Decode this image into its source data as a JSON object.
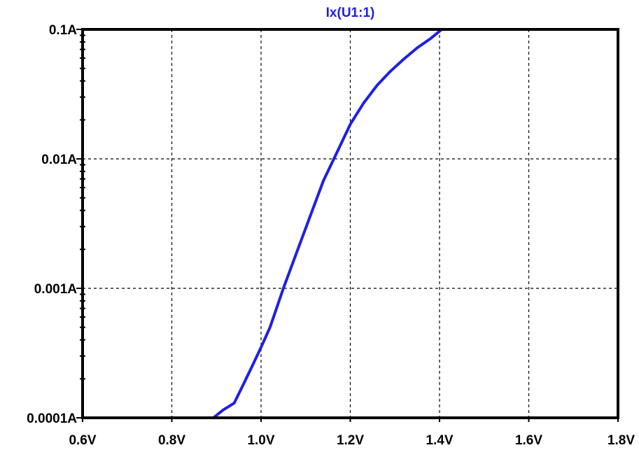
{
  "chart_data": {
    "type": "line",
    "title": "Ix(U1:1)",
    "xlabel": "",
    "ylabel": "",
    "x_scale": "linear",
    "y_scale": "log",
    "xlim": [
      0.6,
      1.8
    ],
    "ylim": [
      0.0001,
      0.1
    ],
    "x_ticks": [
      0.6,
      0.8,
      1.0,
      1.2,
      1.4,
      1.6,
      1.8
    ],
    "x_tick_labels": [
      "0.6V",
      "0.8V",
      "1.0V",
      "1.2V",
      "1.4V",
      "1.6V",
      "1.8V"
    ],
    "y_ticks": [
      0.0001,
      0.001,
      0.01,
      0.1
    ],
    "y_tick_labels": [
      "0.0001A",
      "0.001A",
      "0.01A",
      "0.1A"
    ],
    "grid": true,
    "colors": {
      "series": "#1f1fe6",
      "title": "#1f1fe6",
      "axes": "#000000",
      "grid": "#000000"
    },
    "series": [
      {
        "name": "Ix(U1:1)",
        "x": [
          0.893,
          0.915,
          0.94,
          0.96,
          0.98,
          1.0,
          1.02,
          1.05,
          1.08,
          1.11,
          1.14,
          1.17,
          1.2,
          1.23,
          1.26,
          1.29,
          1.32,
          1.35,
          1.38,
          1.405
        ],
        "y": [
          0.0001,
          0.000115,
          0.00013,
          0.00018,
          0.00025,
          0.00035,
          0.0005,
          0.001,
          0.0019,
          0.0036,
          0.0068,
          0.0112,
          0.0185,
          0.027,
          0.037,
          0.0475,
          0.059,
          0.072,
          0.085,
          0.1
        ]
      }
    ]
  }
}
